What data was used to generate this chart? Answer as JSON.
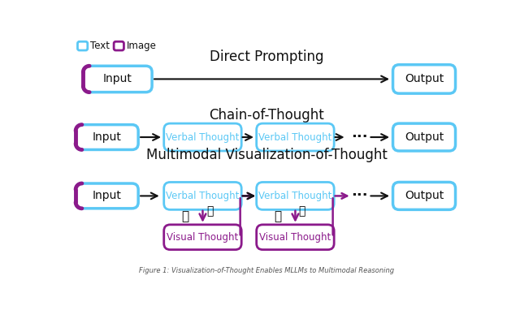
{
  "title_direct": "Direct Prompting",
  "title_cot": "Chain-of-Thought",
  "title_mvot": "Multimodal Visualization-of-Thought",
  "legend_text": "Text",
  "legend_image": "Image",
  "bg_color": "#ffffff",
  "blue_border": "#5BC8F5",
  "purple_border": "#8B1A8B",
  "blue_text": "#5BC8F5",
  "purple_text": "#8B1A8B",
  "dark_text": "#111111",
  "arrow_color": "#111111",
  "font_size_title": 12,
  "font_size_box": 9,
  "font_size_legend": 8.5
}
